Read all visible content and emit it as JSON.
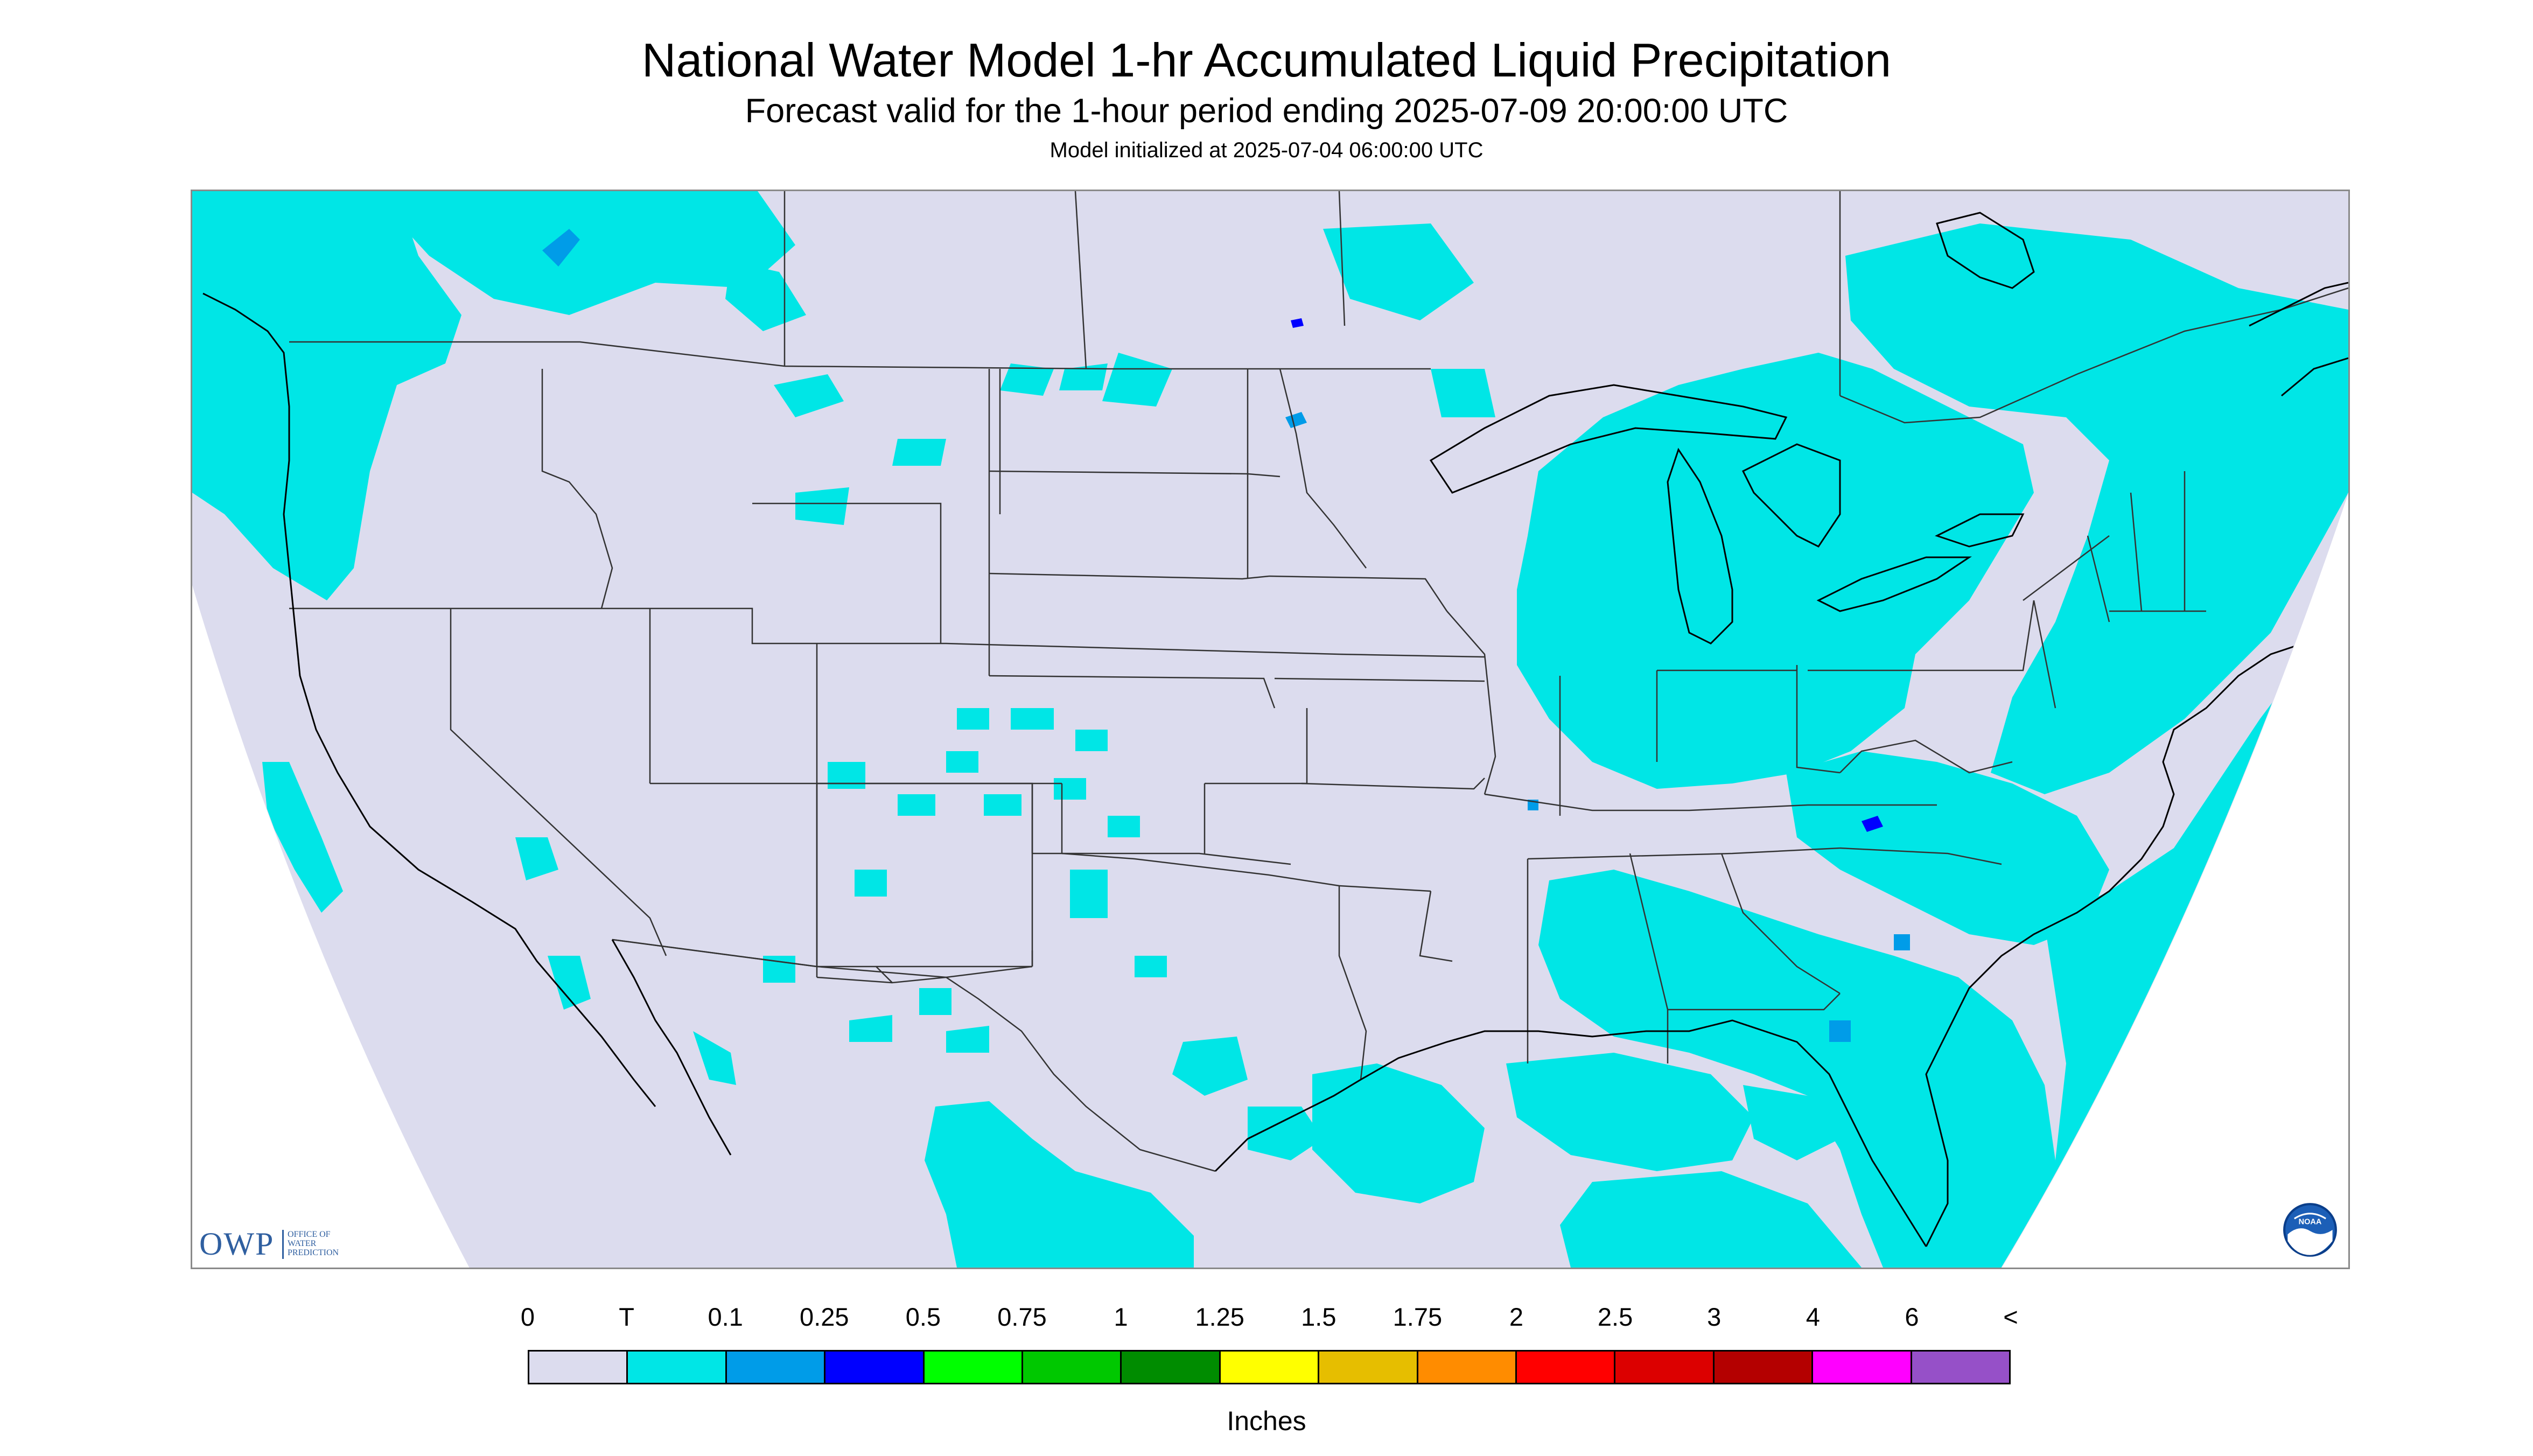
{
  "header": {
    "title": "National Water Model 1-hr Accumulated Liquid Precipitation",
    "subtitle": "Forecast valid for the 1-hour period ending 2025-07-09 20:00:00 UTC",
    "init_line": "Model initialized at 2025-07-04 06:00:00 UTC"
  },
  "map": {
    "projection": "Lambert conformal (CONUS)",
    "background_color": "#dcdcee",
    "outside_domain_color": "#ffffff",
    "boundary_color": "#333333",
    "coastline_color": "#000000",
    "precip_color": "#00e6e6",
    "heavier_precip_color": "#009ce8",
    "heaviest_precip_color": "#0000ff"
  },
  "logos": {
    "owp": {
      "letters": "OWP",
      "name_line1": "OFFICE OF",
      "name_line2": "WATER",
      "name_line3": "PREDICTION"
    },
    "noaa": {
      "text": "NOAA",
      "icon": "noaa-logo"
    }
  },
  "legend": {
    "labels": [
      "0",
      "T",
      "0.1",
      "0.25",
      "0.5",
      "0.75",
      "1",
      "1.25",
      "1.5",
      "1.75",
      "2",
      "2.5",
      "3",
      "4",
      "6",
      "<"
    ],
    "colors": [
      "#dcdcee",
      "#00e6e6",
      "#009ce8",
      "#0000ff",
      "#00ff00",
      "#00c800",
      "#008c00",
      "#ffff00",
      "#e6be00",
      "#ff8c00",
      "#ff0000",
      "#dc0000",
      "#b40000",
      "#ff00ff",
      "#9650c8"
    ],
    "unit": "Inches"
  }
}
